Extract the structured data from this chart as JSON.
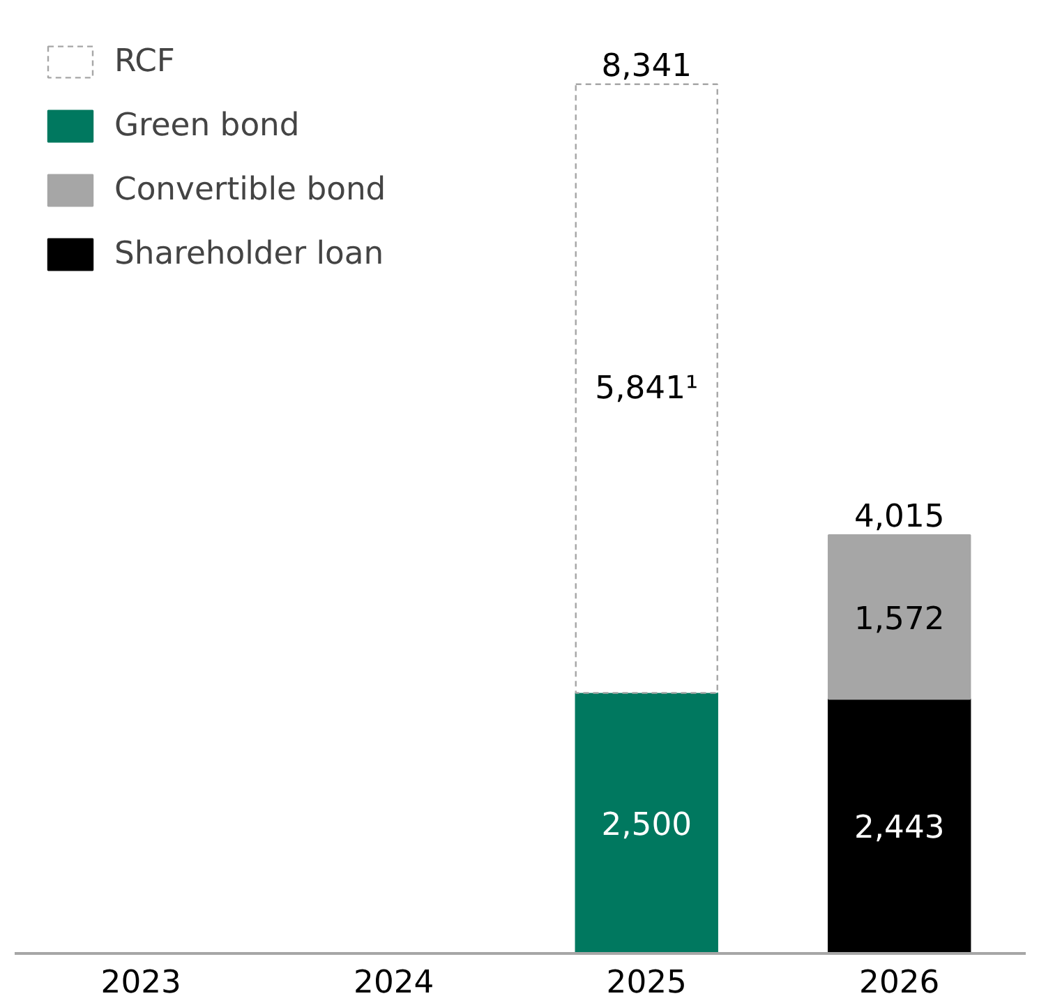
{
  "chart_data": {
    "type": "bar",
    "stacked": true,
    "categories": [
      "2023",
      "2024",
      "2025",
      "2026"
    ],
    "series": [
      {
        "name": "Shareholder loan",
        "color": "#000000",
        "values": [
          null,
          null,
          null,
          2443
        ],
        "value_labels": [
          null,
          null,
          null,
          "2,443"
        ]
      },
      {
        "name": "Convertible bond",
        "color": "#a6a6a6",
        "values": [
          null,
          null,
          null,
          1572
        ],
        "value_labels": [
          null,
          null,
          null,
          "1,572"
        ]
      },
      {
        "name": "Green bond",
        "color": "#00785f",
        "values": [
          null,
          null,
          2500,
          null
        ],
        "value_labels": [
          null,
          null,
          "2,500",
          null
        ]
      },
      {
        "name": "RCF",
        "color": "#ffffff",
        "line_style": "dashed",
        "values": [
          null,
          null,
          5841,
          null
        ],
        "value_labels": [
          null,
          null,
          "5,841¹",
          null
        ]
      }
    ],
    "totals": [
      null,
      null,
      "8,341",
      "4,015"
    ],
    "legend": "top left",
    "grid": false
  }
}
